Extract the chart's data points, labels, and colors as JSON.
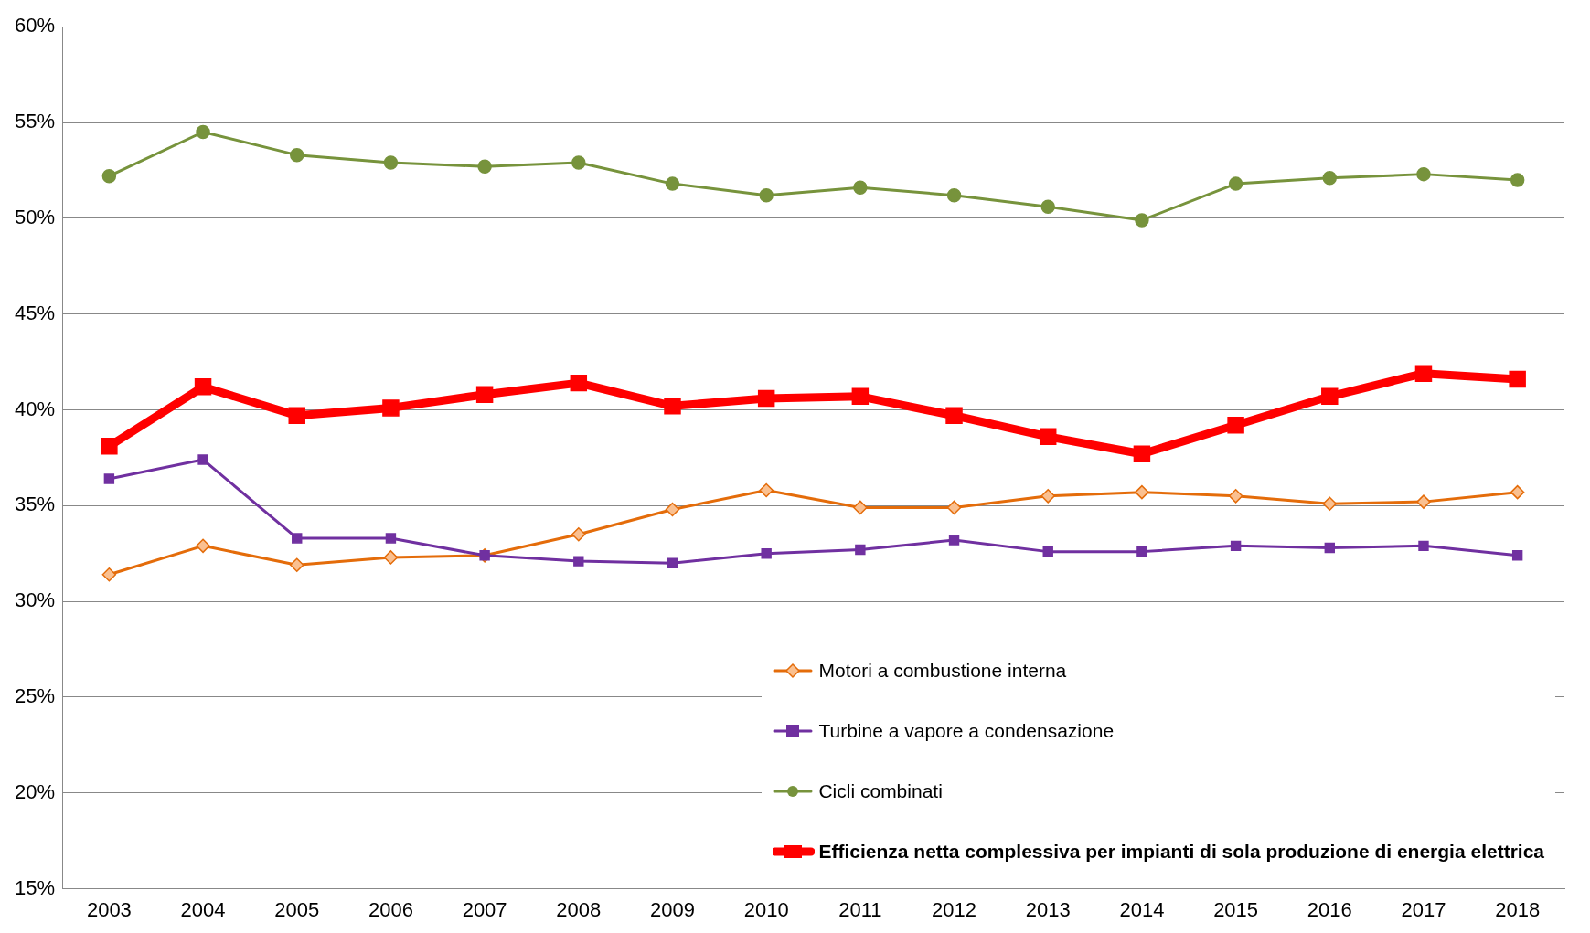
{
  "chart_data": {
    "type": "line",
    "categories": [
      "2003",
      "2004",
      "2005",
      "2006",
      "2007",
      "2008",
      "2009",
      "2010",
      "2011",
      "2012",
      "2013",
      "2014",
      "2015",
      "2016",
      "2017",
      "2018"
    ],
    "ylim": [
      15,
      60
    ],
    "yticks": [
      {
        "value": 15,
        "label": "15%"
      },
      {
        "value": 20,
        "label": "20%"
      },
      {
        "value": 25,
        "label": "25%"
      },
      {
        "value": 30,
        "label": "30%"
      },
      {
        "value": 35,
        "label": "35%"
      },
      {
        "value": 40,
        "label": "40%"
      },
      {
        "value": 45,
        "label": "45%"
      },
      {
        "value": 50,
        "label": "50%"
      },
      {
        "value": 55,
        "label": "55%"
      },
      {
        "value": 60,
        "label": "60%"
      }
    ],
    "grid": "y",
    "legend": "bottom right",
    "series": [
      {
        "name": "Motori a combustione interna",
        "color": "#e46c0a",
        "marker": "diamond",
        "values": [
          31.4,
          32.9,
          31.9,
          32.3,
          32.4,
          33.5,
          34.8,
          35.8,
          34.9,
          34.9,
          35.5,
          35.7,
          35.5,
          35.1,
          35.2,
          35.7
        ]
      },
      {
        "name": "Turbine a vapore a condensazione",
        "color": "#7030a0",
        "marker": "square",
        "values": [
          36.4,
          37.4,
          33.3,
          33.3,
          32.4,
          32.1,
          32.0,
          32.5,
          32.7,
          33.2,
          32.6,
          32.6,
          32.9,
          32.8,
          32.9,
          32.4
        ]
      },
      {
        "name": "Cicli combinati",
        "color": "#77933c",
        "marker": "circle",
        "values": [
          52.2,
          54.5,
          53.3,
          52.9,
          52.7,
          52.9,
          51.8,
          51.2,
          51.6,
          51.2,
          50.6,
          49.9,
          51.8,
          52.1,
          52.3,
          52.0
        ]
      },
      {
        "name": "Efficienza netta complessiva per impianti di sola produzione di energia elettrica",
        "color": "#ff0000",
        "marker": "square",
        "values": [
          38.1,
          41.2,
          39.7,
          40.1,
          40.8,
          41.4,
          40.2,
          40.6,
          40.7,
          39.7,
          38.6,
          37.7,
          39.2,
          40.7,
          41.9,
          41.6
        ]
      }
    ]
  }
}
